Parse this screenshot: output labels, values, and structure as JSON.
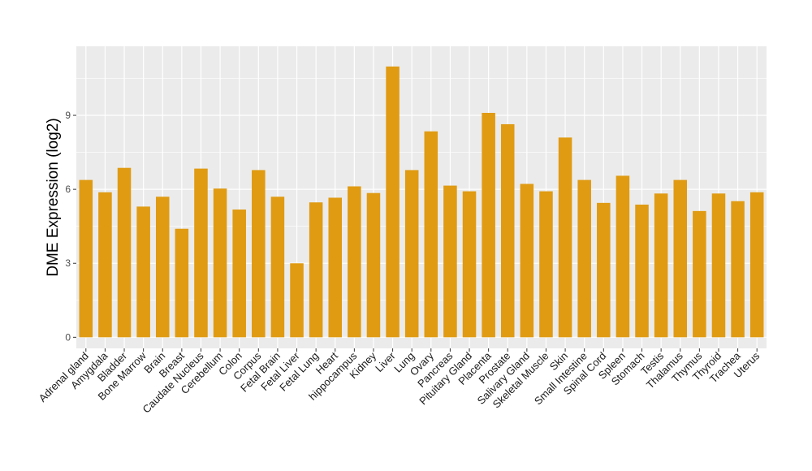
{
  "chart_data": {
    "type": "bar",
    "title": "",
    "xlabel": "",
    "ylabel": "DME Expression (log2)",
    "ylim": [
      -0.45,
      11.8
    ],
    "yticks": [
      0,
      3,
      6,
      9
    ],
    "grid": true,
    "legend": "none",
    "bar_color": "#E09B12",
    "panel_color": "#EBEBEB",
    "grid_color": "#FFFFFF",
    "categories": [
      "Adrenal gland",
      "Amygdala",
      "Bladder",
      "Bone Marrow",
      "Brain",
      "Breast",
      "Caudate Nucleus",
      "Cerebellum",
      "Colon",
      "Corpus",
      "Fetal Brain",
      "Fetal Liver",
      "Fetal Lung",
      "Heart",
      "hippocampus",
      "Kidney",
      "Liver",
      "Lung",
      "Ovary",
      "Pancreas",
      "Pituitary Gland",
      "Placenta",
      "Prostate",
      "Salivary Gland",
      "Skeletal Muscle",
      "Skin",
      "Small Intestine",
      "Spinal Cord",
      "Spleen",
      "Stomach",
      "Testis",
      "Thalamus",
      "Thymus",
      "Thyroid",
      "Trachea",
      "Uterus"
    ],
    "values": [
      6.38,
      5.88,
      6.87,
      5.3,
      5.7,
      4.4,
      6.84,
      6.03,
      5.18,
      6.78,
      5.7,
      3.0,
      5.47,
      5.66,
      6.12,
      5.85,
      10.98,
      6.78,
      8.35,
      6.15,
      5.92,
      9.1,
      8.64,
      6.22,
      5.92,
      8.1,
      6.38,
      5.45,
      6.55,
      5.38,
      5.83,
      6.38,
      5.12,
      5.83,
      5.52,
      5.88
    ]
  }
}
